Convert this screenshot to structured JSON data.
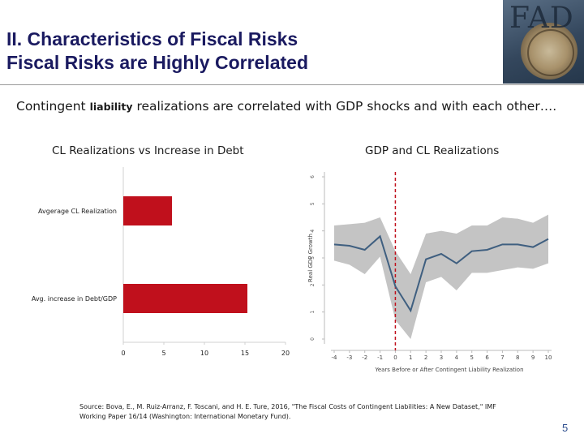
{
  "slide": {
    "title_line1": "II. Characteristics of Fiscal Risks",
    "title_line2": "Fiscal Risks are Highly Correlated",
    "intro_part1": "Contingent",
    "intro_bold": "liability",
    "intro_part2": "realizations are correlated with GDP shocks and with each other….",
    "source": "Source: Bova, E., M. Ruiz-Arranz, F. Toscani, and H. E. Ture, 2016, \"The Fiscal Costs of Contingent Liabilities: A New Dataset,\" IMF Working Paper 16/14 (Washington: International Monetary Fund).",
    "page_number": "5"
  },
  "logo": {
    "text": "FAD",
    "seal_name": "IMF seal"
  },
  "colors": {
    "title": "#1a1a60",
    "bar": "#c0101c",
    "line": "#3f5f80",
    "band": "#c4c4c4",
    "dashed": "#c0101c"
  },
  "chart_data": [
    {
      "type": "bar",
      "orientation": "horizontal",
      "title": "CL Realizations vs Increase in Debt",
      "categories": [
        "Avgerage CL Realization",
        "Avg. increase in Debt/GDP"
      ],
      "values": [
        6,
        15.3
      ],
      "xlim": [
        0,
        20
      ],
      "xticks": [
        "0",
        "5",
        "10",
        "15",
        "20"
      ]
    },
    {
      "type": "line",
      "title": "GDP and CL Realizations",
      "xlabel": "Years Before or After Contingent Liability Realization",
      "ylabel": "Real GDP Growth",
      "x": [
        -4,
        -3,
        -2,
        -1,
        0,
        1,
        2,
        3,
        4,
        5,
        6,
        7,
        8,
        9,
        10
      ],
      "xticks": [
        "-4",
        "-3",
        "-2",
        "-1",
        "0",
        "1",
        "2",
        "3",
        "4",
        "5",
        "6",
        "7",
        "8",
        "9",
        "10"
      ],
      "yticks": [
        "0",
        "1",
        "2",
        "3",
        "4",
        "5",
        "6"
      ],
      "ylim": [
        0,
        6
      ],
      "series": [
        {
          "name": "Real GDP Growth",
          "values": [
            3.5,
            3.45,
            3.3,
            3.8,
            1.95,
            1.05,
            2.95,
            3.15,
            2.8,
            3.25,
            3.3,
            3.5,
            3.5,
            3.4,
            3.7
          ]
        },
        {
          "name": "Upper band",
          "values": [
            4.2,
            4.25,
            4.3,
            4.5,
            3.25,
            2.4,
            3.9,
            4.0,
            3.9,
            4.2,
            4.2,
            4.5,
            4.45,
            4.3,
            4.6
          ]
        },
        {
          "name": "Lower band",
          "values": [
            2.9,
            2.75,
            2.4,
            3.05,
            0.7,
            0.0,
            2.1,
            2.3,
            1.8,
            2.45,
            2.45,
            2.55,
            2.65,
            2.6,
            2.8
          ]
        }
      ],
      "vline_x": 0
    }
  ]
}
